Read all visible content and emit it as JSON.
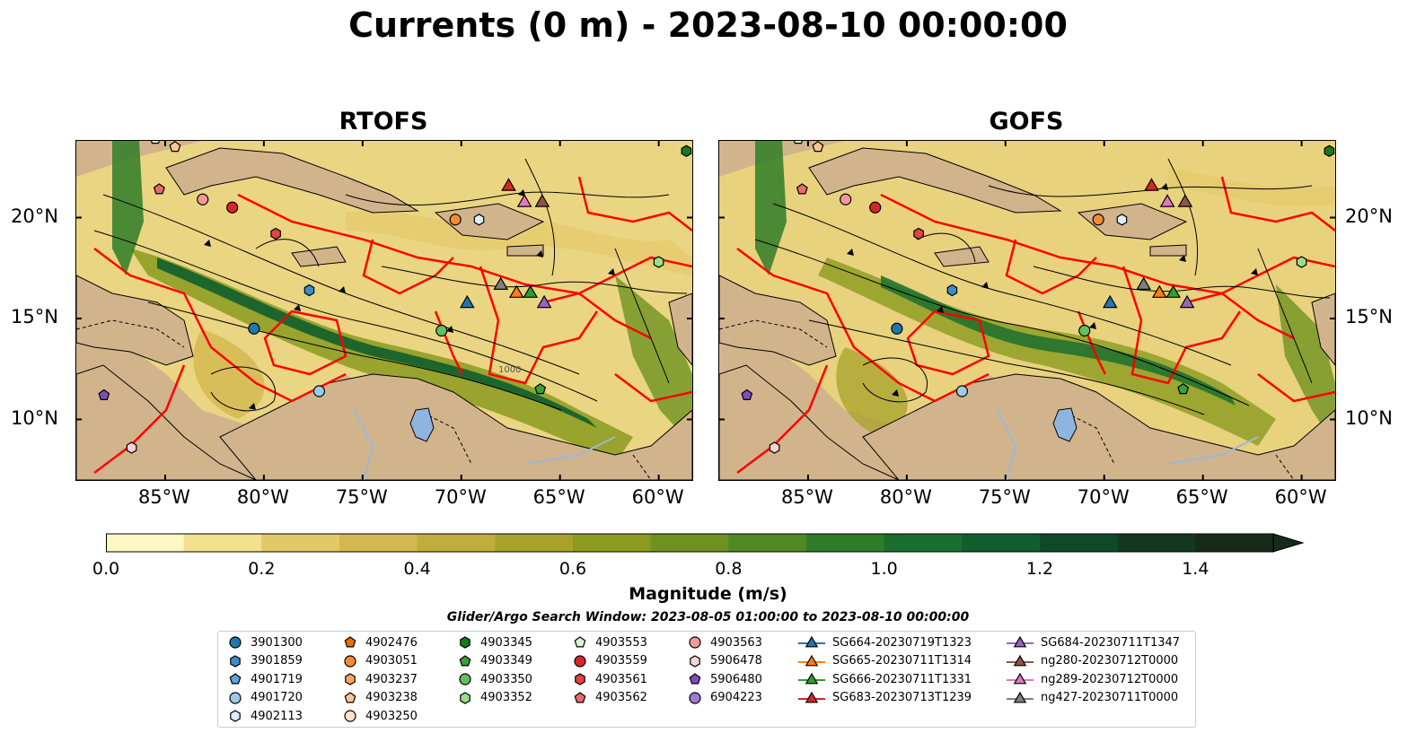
{
  "title": "Currents (0 m) - 2023-08-10 00:00:00",
  "panels": [
    {
      "title": "RTOFS"
    },
    {
      "title": "GOFS"
    }
  ],
  "axes": {
    "lon_labels": [
      "85°W",
      "80°W",
      "75°W",
      "70°W",
      "65°W",
      "60°W"
    ],
    "lon_values": [
      -85,
      -80,
      -75,
      -70,
      -65,
      -60
    ],
    "lat_labels": [
      "20°N",
      "15°N",
      "10°N"
    ],
    "lat_values": [
      20,
      15,
      10
    ],
    "lon_range": [
      -89.5,
      -58.3
    ],
    "lat_range": [
      7.0,
      23.8
    ]
  },
  "colorbar": {
    "label": "Magnitude (m/s)",
    "tick_labels": [
      "0.0",
      "0.2",
      "0.4",
      "0.6",
      "0.8",
      "1.0",
      "1.2",
      "1.4"
    ],
    "tick_values": [
      0.0,
      0.2,
      0.4,
      0.6,
      0.8,
      1.0,
      1.2,
      1.4
    ],
    "range": [
      0.0,
      1.5
    ],
    "extend": "max",
    "colors": [
      "#fdf7c4",
      "#f1e08e",
      "#e2c866",
      "#d3b84f",
      "#bfae3c",
      "#a8a22c",
      "#8a9b1e",
      "#6e9220",
      "#4f8924",
      "#2f7d28",
      "#1a6e2e",
      "#0f5e2e",
      "#0f4a26",
      "#14381f",
      "#172b19"
    ]
  },
  "search_window": "Glider/Argo Search Window: 2023-08-05 01:00:00 to 2023-08-10 00:00:00",
  "legend": {
    "columns": [
      [
        {
          "label": "3901300",
          "marker": "circle",
          "color": "#1f77b4"
        },
        {
          "label": "3901859",
          "marker": "hexagon",
          "color": "#3a8dc9"
        },
        {
          "label": "4901719",
          "marker": "pentagon",
          "color": "#5fa2dd"
        },
        {
          "label": "4901720",
          "marker": "circle",
          "color": "#9ecae9"
        },
        {
          "label": "4902113",
          "marker": "hexagon",
          "color": "#dbeefb"
        }
      ],
      [
        {
          "label": "4902476",
          "marker": "pentagon",
          "color": "#e6700a"
        },
        {
          "label": "4903051",
          "marker": "circle",
          "color": "#f58c35"
        },
        {
          "label": "4903237",
          "marker": "hexagon",
          "color": "#f9a760"
        },
        {
          "label": "4903238",
          "marker": "pentagon",
          "color": "#fcc595"
        },
        {
          "label": "4903250",
          "marker": "circle",
          "color": "#fee3c8"
        }
      ],
      [
        {
          "label": "4903345",
          "marker": "hexagon",
          "color": "#1a7a1a"
        },
        {
          "label": "4903349",
          "marker": "pentagon",
          "color": "#39a039"
        },
        {
          "label": "4903350",
          "marker": "circle",
          "color": "#62c05c"
        },
        {
          "label": "4903352",
          "marker": "hexagon",
          "color": "#98df8a"
        }
      ],
      [
        {
          "label": "4903553",
          "marker": "pentagon",
          "color": "#d8f5cf"
        },
        {
          "label": "4903559",
          "marker": "circle",
          "color": "#d62728"
        },
        {
          "label": "4903561",
          "marker": "hexagon",
          "color": "#e04545"
        },
        {
          "label": "4903562",
          "marker": "pentagon",
          "color": "#ea6a6a"
        }
      ],
      [
        {
          "label": "4903563",
          "marker": "circle",
          "color": "#f29a9a"
        },
        {
          "label": "5906478",
          "marker": "hexagon",
          "color": "#fcd3d3"
        },
        {
          "label": "5906480",
          "marker": "pentagon",
          "color": "#7b4fb8"
        },
        {
          "label": "6904223",
          "marker": "circle",
          "color": "#9d7bd0"
        }
      ],
      [
        {
          "label": "SG664-20230719T1323",
          "marker": "triangle",
          "color": "#1f77b4"
        },
        {
          "label": "SG665-20230711T1314",
          "marker": "triangle",
          "color": "#ff7f0e"
        },
        {
          "label": "SG666-20230711T1331",
          "marker": "triangle",
          "color": "#2ca02c"
        },
        {
          "label": "SG683-20230713T1239",
          "marker": "triangle",
          "color": "#d62728"
        }
      ],
      [
        {
          "label": "SG684-20230711T1347",
          "marker": "triangle",
          "color": "#9467bd"
        },
        {
          "label": "ng280-20230712T0000",
          "marker": "triangle",
          "color": "#8c564b"
        },
        {
          "label": "ng289-20230712T0000",
          "marker": "triangle",
          "color": "#e377c2"
        },
        {
          "label": "ng427-20230711T0000",
          "marker": "triangle",
          "color": "#7f7f7f"
        }
      ]
    ]
  },
  "floats": [
    {
      "id": "3901300",
      "lon": -80.5,
      "lat": 14.5,
      "marker": "circle",
      "color": "#1f77b4"
    },
    {
      "id": "3901859",
      "lon": -77.7,
      "lat": 16.4,
      "marker": "hexagon",
      "color": "#3a8dc9"
    },
    {
      "id": "4901720",
      "lon": -77.2,
      "lat": 11.4,
      "marker": "circle",
      "color": "#9ecae9"
    },
    {
      "id": "4902113",
      "lon": -69.1,
      "lat": 19.9,
      "marker": "hexagon",
      "color": "#dbeefb"
    },
    {
      "id": "4903051",
      "lon": -70.3,
      "lat": 19.9,
      "marker": "circle",
      "color": "#f58c35"
    },
    {
      "id": "4903238",
      "lon": -84.5,
      "lat": 23.5,
      "marker": "pentagon",
      "color": "#fcc595"
    },
    {
      "id": "4903345",
      "lon": -58.6,
      "lat": 23.3,
      "marker": "hexagon",
      "color": "#1a7a1a"
    },
    {
      "id": "4903349",
      "lon": -66.0,
      "lat": 11.5,
      "marker": "pentagon",
      "color": "#39a039"
    },
    {
      "id": "4903350",
      "lon": -71.0,
      "lat": 14.4,
      "marker": "circle",
      "color": "#62c05c"
    },
    {
      "id": "4903352",
      "lon": -60.0,
      "lat": 17.8,
      "marker": "hexagon",
      "color": "#98df8a"
    },
    {
      "id": "4903553",
      "lon": -85.5,
      "lat": 23.9,
      "marker": "pentagon",
      "color": "#d8f5cf"
    },
    {
      "id": "4903559",
      "lon": -81.6,
      "lat": 20.5,
      "marker": "circle",
      "color": "#d62728"
    },
    {
      "id": "4903561",
      "lon": -79.4,
      "lat": 19.2,
      "marker": "hexagon",
      "color": "#e04545"
    },
    {
      "id": "4903562",
      "lon": -85.3,
      "lat": 21.4,
      "marker": "pentagon",
      "color": "#ea6a6a"
    },
    {
      "id": "4903563",
      "lon": -83.1,
      "lat": 20.9,
      "marker": "circle",
      "color": "#f29a9a"
    },
    {
      "id": "5906478",
      "lon": -86.7,
      "lat": 8.6,
      "marker": "hexagon",
      "color": "#fcd3d3"
    },
    {
      "id": "5906480",
      "lon": -88.1,
      "lat": 11.2,
      "marker": "pentagon",
      "color": "#7b4fb8"
    }
  ],
  "gliders": [
    {
      "id": "SG664-20230719T1323",
      "lon": -69.7,
      "lat": 15.8,
      "color": "#1f77b4"
    },
    {
      "id": "SG665-20230711T1314",
      "lon": -67.2,
      "lat": 16.3,
      "color": "#ff7f0e"
    },
    {
      "id": "SG666-20230711T1331",
      "lon": -66.5,
      "lat": 16.3,
      "color": "#2ca02c"
    },
    {
      "id": "SG683-20230713T1239",
      "lon": -67.6,
      "lat": 21.6,
      "color": "#d62728"
    },
    {
      "id": "SG684-20230711T1347",
      "lon": -65.8,
      "lat": 15.8,
      "color": "#9467bd"
    },
    {
      "id": "ng280-20230712T0000",
      "lon": -65.9,
      "lat": 20.8,
      "color": "#8c564b"
    },
    {
      "id": "ng289-20230712T0000",
      "lon": -66.8,
      "lat": 20.8,
      "color": "#e377c2"
    },
    {
      "id": "ng427-20230711T0000",
      "lon": -68.0,
      "lat": 16.7,
      "color": "#7f7f7f"
    }
  ],
  "contour_label": "1000"
}
